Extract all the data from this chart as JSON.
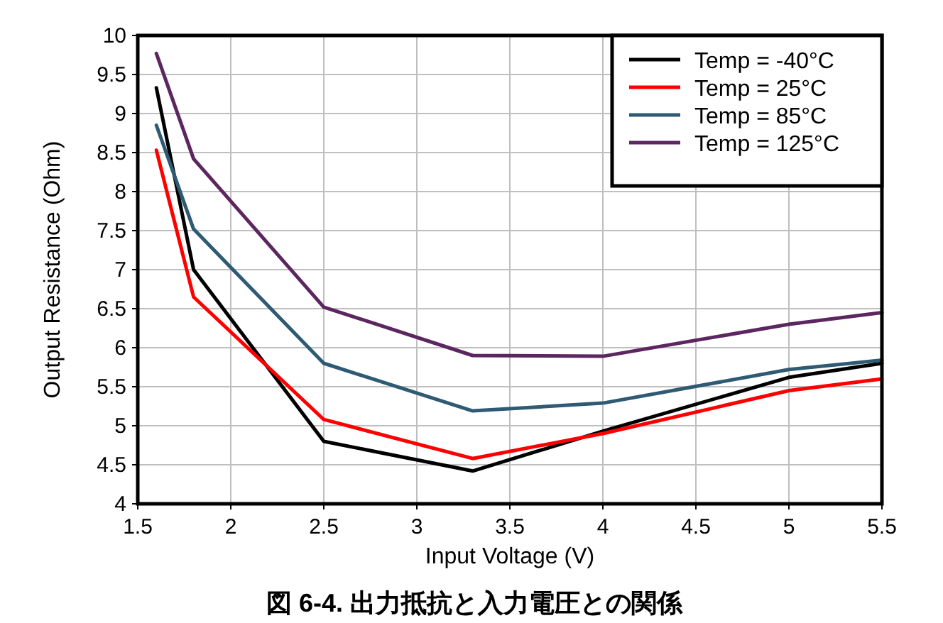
{
  "chart_data": {
    "type": "line",
    "title": "図 6-4. 出力抵抗と入力電圧との関係",
    "xlabel": "Input Voltage (V)",
    "ylabel": "Output Resistance (Ohm)",
    "x": [
      1.6,
      1.8,
      2.5,
      3.3,
      4,
      5,
      5.5
    ],
    "series": [
      {
        "name": "Temp = -40°C",
        "color": "#000000",
        "values": [
          9.33,
          7.0,
          4.8,
          4.42,
          4.93,
          5.62,
          5.8
        ]
      },
      {
        "name": "Temp = 25°C",
        "color": "#ff0000",
        "values": [
          8.53,
          6.65,
          5.08,
          4.58,
          4.9,
          5.45,
          5.6
        ]
      },
      {
        "name": "Temp = 85°C",
        "color": "#2e5a73",
        "values": [
          8.85,
          7.52,
          5.8,
          5.19,
          5.29,
          5.72,
          5.84
        ]
      },
      {
        "name": "Temp = 125°C",
        "color": "#5c2660",
        "values": [
          9.77,
          8.42,
          6.52,
          5.9,
          5.89,
          6.3,
          6.45
        ]
      }
    ],
    "xlim": [
      1.5,
      5.5
    ],
    "xticks": [
      1.5,
      2,
      2.5,
      3,
      3.5,
      4,
      4.5,
      5,
      5.5
    ],
    "ylim": [
      4,
      10
    ],
    "yticks": [
      4,
      4.5,
      5,
      5.5,
      6,
      6.5,
      7,
      7.5,
      8,
      8.5,
      9,
      9.5,
      10
    ],
    "grid": true,
    "legend": "top right",
    "marker": "none",
    "line_style": "solid"
  }
}
